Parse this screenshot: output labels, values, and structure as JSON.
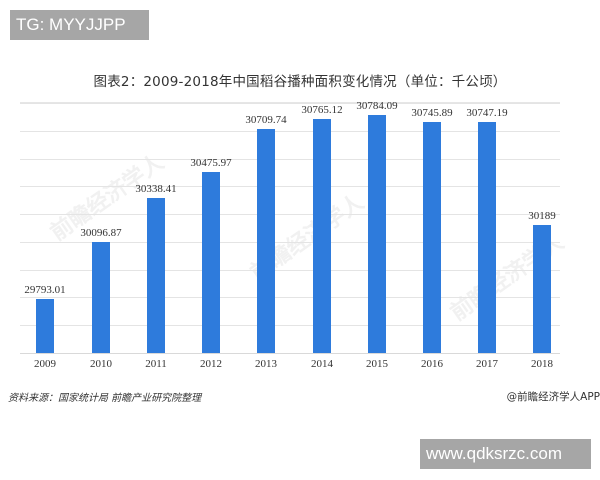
{
  "overlay": {
    "top_badge": "TG: MYYJJPP",
    "bottom_badge": "www.qdksrzc.com"
  },
  "header": {
    "title": "图表2：2009-2018年中国稻谷播种面积变化情况（单位：千公顷）"
  },
  "footer": {
    "source": "资料来源：国家统计局 前瞻产业研究院整理",
    "credit": "@前瞻经济学人APP"
  },
  "colors": {
    "bar": "#2e7bdc",
    "gridline": "#e4e4e4",
    "badge_bg": "#a6a6a6"
  },
  "chart_data": {
    "type": "bar",
    "title": "图表2：2009-2018年中国稻谷播种面积变化情况（单位：千公顷）",
    "xlabel": "",
    "ylabel": "千公顷",
    "categories": [
      "2009",
      "2010",
      "2011",
      "2012",
      "2013",
      "2014",
      "2015",
      "2016",
      "2017",
      "2018"
    ],
    "values": [
      29793.01,
      30096.87,
      30338.41,
      30475.97,
      30709.74,
      30765.12,
      30784.09,
      30745.89,
      30747.19,
      30189
    ],
    "labels": [
      "29793.01",
      "30096.87",
      "30338.41",
      "30475.97",
      "30709.74",
      "30765.12",
      "30784.09",
      "30745.89",
      "30747.19",
      "30189"
    ],
    "ylim": [
      29500,
      30850
    ],
    "grid": true,
    "legend": "none",
    "data_labels": true,
    "source": "资料来源：国家统计局 前瞻产业研究院整理"
  }
}
